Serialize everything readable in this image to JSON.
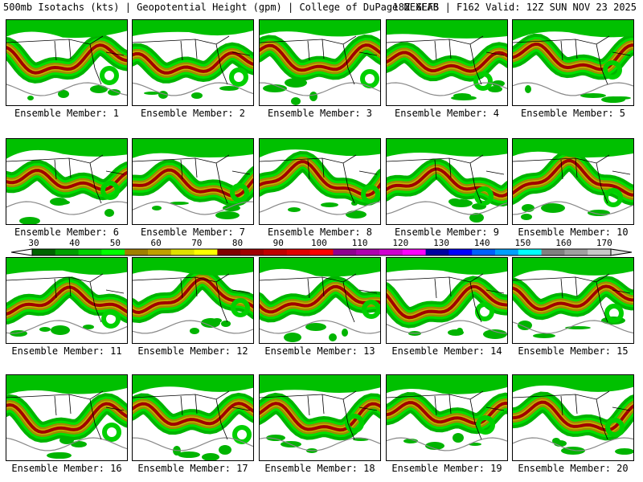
{
  "header": {
    "left": "500mb Isotachs (kts) | Geopotential Height (gpm) | College of DuPage NEXLAB",
    "right": "18Z GEFS | F162 Valid: 12Z SUN NOV 23 2025"
  },
  "members": [
    "Ensemble Member: 1",
    "Ensemble Member: 2",
    "Ensemble Member: 3",
    "Ensemble Member: 4",
    "Ensemble Member: 5",
    "Ensemble Member: 6",
    "Ensemble Member: 7",
    "Ensemble Member: 8",
    "Ensemble Member: 9",
    "Ensemble Member: 10",
    "Ensemble Member: 11",
    "Ensemble Member: 12",
    "Ensemble Member: 13",
    "Ensemble Member: 14",
    "Ensemble Member: 15",
    "Ensemble Member: 16",
    "Ensemble Member: 17",
    "Ensemble Member: 18",
    "Ensemble Member: 19",
    "Ensemble Member: 20"
  ],
  "colorbar": {
    "ticks": [
      "30",
      "40",
      "50",
      "60",
      "70",
      "80",
      "90",
      "100",
      "110",
      "120",
      "130",
      "140",
      "150",
      "160",
      "170"
    ],
    "colors": [
      "#006400",
      "#00a000",
      "#00d000",
      "#00ff00",
      "#a08000",
      "#c0a000",
      "#e0e000",
      "#ffff00",
      "#800000",
      "#a00000",
      "#c00000",
      "#e00000",
      "#ff0000",
      "#900090",
      "#b000b0",
      "#d000d0",
      "#ff00ff",
      "#0000a0",
      "#0000ff",
      "#0060ff",
      "#00a0ff",
      "#00ffff",
      "#808080",
      "#a0a0a0",
      "#c8c8c8"
    ]
  }
}
